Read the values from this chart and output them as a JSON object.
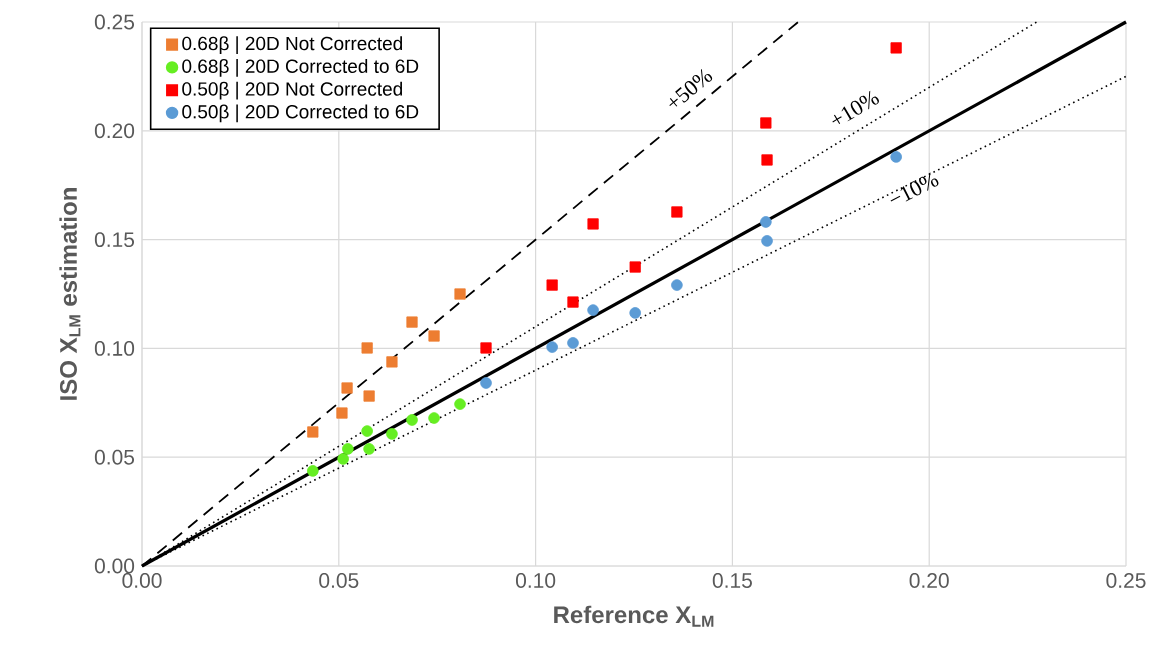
{
  "chart_data": {
    "type": "scatter",
    "xlabel": "Reference X$_{LM}$",
    "ylabel": "ISO X$_{LM}$ estimation",
    "xlim": [
      0,
      0.25
    ],
    "ylim": [
      0,
      0.25
    ],
    "xticks": [
      {
        "value": 0,
        "label": "0.00"
      },
      {
        "value": 0.05,
        "label": "0.05"
      },
      {
        "value": 0.1,
        "label": "0.10"
      },
      {
        "value": 0.15,
        "label": "0.15"
      },
      {
        "value": 0.2,
        "label": "0.20"
      },
      {
        "value": 0.25,
        "label": "0.25"
      }
    ],
    "yticks": [
      {
        "value": 0,
        "label": "0.00"
      },
      {
        "value": 0.05,
        "label": "0.05"
      },
      {
        "value": 0.1,
        "label": "0.10"
      },
      {
        "value": 0.15,
        "label": "0.15"
      },
      {
        "value": 0.2,
        "label": "0.20"
      },
      {
        "value": 0.25,
        "label": "0.25"
      }
    ],
    "grid": true,
    "legend": "top left",
    "series": [
      {
        "name": "0.68β | 20D Not Corrected",
        "color": "#ed7d31",
        "marker": "square",
        "x": [
          0.0434,
          0.0508,
          0.0521,
          0.0572,
          0.0577,
          0.0635,
          0.0686,
          0.0742,
          0.0808
        ],
        "values": [
          0.0616,
          0.0703,
          0.0818,
          0.1002,
          0.0781,
          0.0938,
          0.1121,
          0.1057,
          0.125
        ]
      },
      {
        "name": "0.68β | 20D Corrected to 6D",
        "color": "#66ee22",
        "marker": "circle",
        "x": [
          0.0434,
          0.0511,
          0.0523,
          0.0572,
          0.0577,
          0.0635,
          0.0686,
          0.0742,
          0.0808
        ],
        "values": [
          0.0437,
          0.0492,
          0.0538,
          0.062,
          0.0538,
          0.0607,
          0.0671,
          0.068,
          0.0744
        ]
      },
      {
        "name": "0.50β | 20D Not Corrected",
        "color": "#ff0000",
        "marker": "square",
        "x": [
          0.0874,
          0.1042,
          0.1095,
          0.1146,
          0.1253,
          0.1359,
          0.1585,
          0.1588,
          0.1916
        ],
        "values": [
          0.1002,
          0.1291,
          0.1213,
          0.1572,
          0.1374,
          0.1627,
          0.2036,
          0.1866,
          0.2381
        ]
      },
      {
        "name": "0.50β | 20D Corrected to 6D",
        "color": "#5b9bd5",
        "marker": "circle",
        "x": [
          0.0874,
          0.1042,
          0.1095,
          0.1146,
          0.1253,
          0.1359,
          0.1585,
          0.1588,
          0.1916
        ],
        "values": [
          0.0841,
          0.1006,
          0.1025,
          0.1176,
          0.1163,
          0.1291,
          0.1581,
          0.1494,
          0.188
        ]
      },
      {
        "type": "line",
        "color": "#000000",
        "line_style": "solid",
        "x": [
          0,
          0.25
        ],
        "values": [
          0,
          0.25
        ]
      },
      {
        "type": "line",
        "color": "#000000",
        "line_style": "dashed",
        "x": [
          0,
          0.1667
        ],
        "values": [
          0,
          0.25
        ]
      },
      {
        "type": "line",
        "color": "#000000",
        "line_style": "dotted",
        "x": [
          0,
          0.2273
        ],
        "values": [
          0,
          0.25
        ]
      },
      {
        "type": "line",
        "color": "#000000",
        "line_style": "dotted",
        "x": [
          0,
          0.25
        ],
        "values": [
          0,
          0.225
        ]
      }
    ],
    "annotations": [
      "+50%",
      "+10%",
      "−10%"
    ]
  }
}
